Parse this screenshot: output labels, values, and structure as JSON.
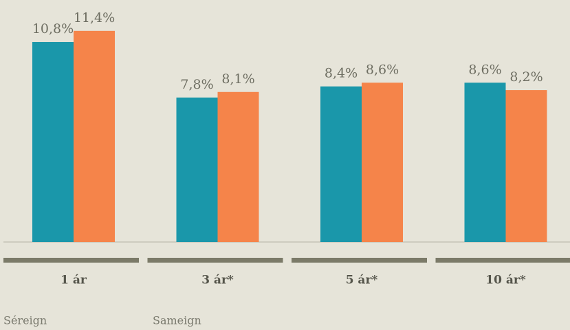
{
  "chart_data": {
    "type": "bar",
    "categories": [
      "1 ár",
      "3 ár*",
      "5 ár*",
      "10 ár*"
    ],
    "series": [
      {
        "name": "Séreign",
        "color": "#1a97aa",
        "values": [
          10.8,
          7.8,
          8.4,
          8.6
        ],
        "value_labels": [
          "10,8%",
          "7,8%",
          "8,4%",
          "8,6%"
        ]
      },
      {
        "name": "Sameign",
        "color": "#f5844a",
        "values": [
          11.4,
          8.1,
          8.6,
          8.2
        ],
        "value_labels": [
          "11,4%",
          "8,1%",
          "8,6%",
          "8,2%"
        ]
      }
    ],
    "ylim": [
      0,
      12
    ]
  }
}
